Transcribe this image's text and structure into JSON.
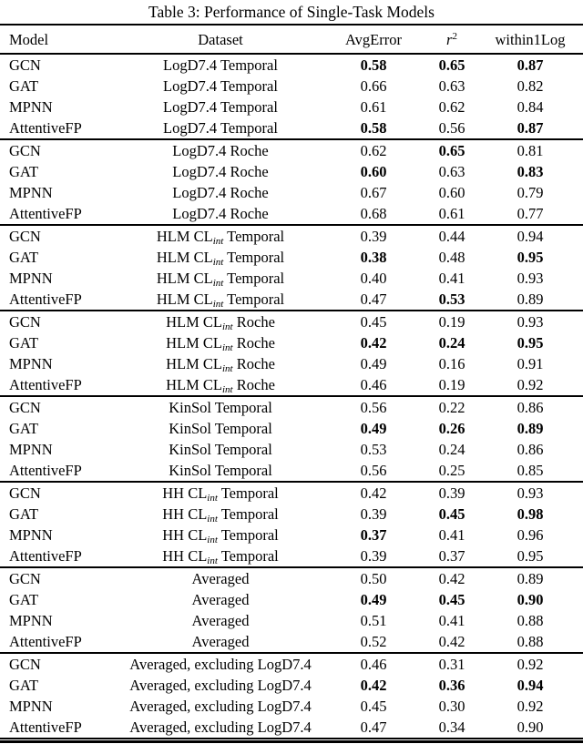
{
  "caption": "Table 3: Performance of Single-Task Models",
  "table": {
    "columns": [
      {
        "label": "Model"
      },
      {
        "label": "Dataset"
      },
      {
        "label": "AvgError"
      },
      {
        "label": "r",
        "sup": "2"
      },
      {
        "label": "within1Log"
      }
    ],
    "metric_cell_names": [
      "avgerror-cell",
      "r2-cell",
      "within1log-cell"
    ],
    "groups": [
      {
        "dataset": {
          "pre": "LogD7.4 Temporal",
          "sub": "",
          "post": ""
        },
        "rows": [
          {
            "model": "GCN",
            "metrics": [
              {
                "v": "0.58",
                "bold": true
              },
              {
                "v": "0.65",
                "bold": true
              },
              {
                "v": "0.87",
                "bold": true
              }
            ]
          },
          {
            "model": "GAT",
            "metrics": [
              {
                "v": "0.66",
                "bold": false
              },
              {
                "v": "0.63",
                "bold": false
              },
              {
                "v": "0.82",
                "bold": false
              }
            ]
          },
          {
            "model": "MPNN",
            "metrics": [
              {
                "v": "0.61",
                "bold": false
              },
              {
                "v": "0.62",
                "bold": false
              },
              {
                "v": "0.84",
                "bold": false
              }
            ]
          },
          {
            "model": "AttentiveFP",
            "metrics": [
              {
                "v": "0.58",
                "bold": true
              },
              {
                "v": "0.56",
                "bold": false
              },
              {
                "v": "0.87",
                "bold": true
              }
            ]
          }
        ]
      },
      {
        "dataset": {
          "pre": "LogD7.4 Roche",
          "sub": "",
          "post": ""
        },
        "rows": [
          {
            "model": "GCN",
            "metrics": [
              {
                "v": "0.62",
                "bold": false
              },
              {
                "v": "0.65",
                "bold": true
              },
              {
                "v": "0.81",
                "bold": false
              }
            ]
          },
          {
            "model": "GAT",
            "metrics": [
              {
                "v": "0.60",
                "bold": true
              },
              {
                "v": "0.63",
                "bold": false
              },
              {
                "v": "0.83",
                "bold": true
              }
            ]
          },
          {
            "model": "MPNN",
            "metrics": [
              {
                "v": "0.67",
                "bold": false
              },
              {
                "v": "0.60",
                "bold": false
              },
              {
                "v": "0.79",
                "bold": false
              }
            ]
          },
          {
            "model": "AttentiveFP",
            "metrics": [
              {
                "v": "0.68",
                "bold": false
              },
              {
                "v": "0.61",
                "bold": false
              },
              {
                "v": "0.77",
                "bold": false
              }
            ]
          }
        ]
      },
      {
        "dataset": {
          "pre": "HLM CL",
          "sub": "int",
          "post": " Temporal"
        },
        "rows": [
          {
            "model": "GCN",
            "metrics": [
              {
                "v": "0.39",
                "bold": false
              },
              {
                "v": "0.44",
                "bold": false
              },
              {
                "v": "0.94",
                "bold": false
              }
            ]
          },
          {
            "model": "GAT",
            "metrics": [
              {
                "v": "0.38",
                "bold": true
              },
              {
                "v": "0.48",
                "bold": false
              },
              {
                "v": "0.95",
                "bold": true
              }
            ]
          },
          {
            "model": "MPNN",
            "metrics": [
              {
                "v": "0.40",
                "bold": false
              },
              {
                "v": "0.41",
                "bold": false
              },
              {
                "v": "0.93",
                "bold": false
              }
            ]
          },
          {
            "model": "AttentiveFP",
            "metrics": [
              {
                "v": "0.47",
                "bold": false
              },
              {
                "v": "0.53",
                "bold": true
              },
              {
                "v": "0.89",
                "bold": false
              }
            ]
          }
        ]
      },
      {
        "dataset": {
          "pre": "HLM CL",
          "sub": "int",
          "post": " Roche"
        },
        "rows": [
          {
            "model": "GCN",
            "metrics": [
              {
                "v": "0.45",
                "bold": false
              },
              {
                "v": "0.19",
                "bold": false
              },
              {
                "v": "0.93",
                "bold": false
              }
            ]
          },
          {
            "model": "GAT",
            "metrics": [
              {
                "v": "0.42",
                "bold": true
              },
              {
                "v": "0.24",
                "bold": true
              },
              {
                "v": "0.95",
                "bold": true
              }
            ]
          },
          {
            "model": "MPNN",
            "metrics": [
              {
                "v": "0.49",
                "bold": false
              },
              {
                "v": "0.16",
                "bold": false
              },
              {
                "v": "0.91",
                "bold": false
              }
            ]
          },
          {
            "model": "AttentiveFP",
            "metrics": [
              {
                "v": "0.46",
                "bold": false
              },
              {
                "v": "0.19",
                "bold": false
              },
              {
                "v": "0.92",
                "bold": false
              }
            ]
          }
        ]
      },
      {
        "dataset": {
          "pre": "KinSol Temporal",
          "sub": "",
          "post": ""
        },
        "rows": [
          {
            "model": "GCN",
            "metrics": [
              {
                "v": "0.56",
                "bold": false
              },
              {
                "v": "0.22",
                "bold": false
              },
              {
                "v": "0.86",
                "bold": false
              }
            ]
          },
          {
            "model": "GAT",
            "metrics": [
              {
                "v": "0.49",
                "bold": true
              },
              {
                "v": "0.26",
                "bold": true
              },
              {
                "v": "0.89",
                "bold": true
              }
            ]
          },
          {
            "model": "MPNN",
            "metrics": [
              {
                "v": "0.53",
                "bold": false
              },
              {
                "v": "0.24",
                "bold": false
              },
              {
                "v": "0.86",
                "bold": false
              }
            ]
          },
          {
            "model": "AttentiveFP",
            "metrics": [
              {
                "v": "0.56",
                "bold": false
              },
              {
                "v": "0.25",
                "bold": false
              },
              {
                "v": "0.85",
                "bold": false
              }
            ]
          }
        ]
      },
      {
        "dataset": {
          "pre": "HH CL",
          "sub": "int",
          "post": " Temporal"
        },
        "rows": [
          {
            "model": "GCN",
            "metrics": [
              {
                "v": "0.42",
                "bold": false
              },
              {
                "v": "0.39",
                "bold": false
              },
              {
                "v": "0.93",
                "bold": false
              }
            ]
          },
          {
            "model": "GAT",
            "metrics": [
              {
                "v": "0.39",
                "bold": false
              },
              {
                "v": "0.45",
                "bold": true
              },
              {
                "v": "0.98",
                "bold": true
              }
            ]
          },
          {
            "model": "MPNN",
            "metrics": [
              {
                "v": "0.37",
                "bold": true
              },
              {
                "v": "0.41",
                "bold": false
              },
              {
                "v": "0.96",
                "bold": false
              }
            ]
          },
          {
            "model": "AttentiveFP",
            "metrics": [
              {
                "v": "0.39",
                "bold": false
              },
              {
                "v": "0.37",
                "bold": false
              },
              {
                "v": "0.95",
                "bold": false
              }
            ]
          }
        ]
      },
      {
        "dataset": {
          "pre": "Averaged",
          "sub": "",
          "post": ""
        },
        "rows": [
          {
            "model": "GCN",
            "metrics": [
              {
                "v": "0.50",
                "bold": false
              },
              {
                "v": "0.42",
                "bold": false
              },
              {
                "v": "0.89",
                "bold": false
              }
            ]
          },
          {
            "model": "GAT",
            "metrics": [
              {
                "v": "0.49",
                "bold": true
              },
              {
                "v": "0.45",
                "bold": true
              },
              {
                "v": "0.90",
                "bold": true
              }
            ]
          },
          {
            "model": "MPNN",
            "metrics": [
              {
                "v": "0.51",
                "bold": false
              },
              {
                "v": "0.41",
                "bold": false
              },
              {
                "v": "0.88",
                "bold": false
              }
            ]
          },
          {
            "model": "AttentiveFP",
            "metrics": [
              {
                "v": "0.52",
                "bold": false
              },
              {
                "v": "0.42",
                "bold": false
              },
              {
                "v": "0.88",
                "bold": false
              }
            ]
          }
        ]
      },
      {
        "dataset": {
          "pre": "Averaged, excluding LogD7.4",
          "sub": "",
          "post": ""
        },
        "rows": [
          {
            "model": "GCN",
            "metrics": [
              {
                "v": "0.46",
                "bold": false
              },
              {
                "v": "0.31",
                "bold": false
              },
              {
                "v": "0.92",
                "bold": false
              }
            ]
          },
          {
            "model": "GAT",
            "metrics": [
              {
                "v": "0.42",
                "bold": true
              },
              {
                "v": "0.36",
                "bold": true
              },
              {
                "v": "0.94",
                "bold": true
              }
            ]
          },
          {
            "model": "MPNN",
            "metrics": [
              {
                "v": "0.45",
                "bold": false
              },
              {
                "v": "0.30",
                "bold": false
              },
              {
                "v": "0.92",
                "bold": false
              }
            ]
          },
          {
            "model": "AttentiveFP",
            "metrics": [
              {
                "v": "0.47",
                "bold": false
              },
              {
                "v": "0.34",
                "bold": false
              },
              {
                "v": "0.90",
                "bold": false
              }
            ]
          }
        ]
      }
    ]
  }
}
